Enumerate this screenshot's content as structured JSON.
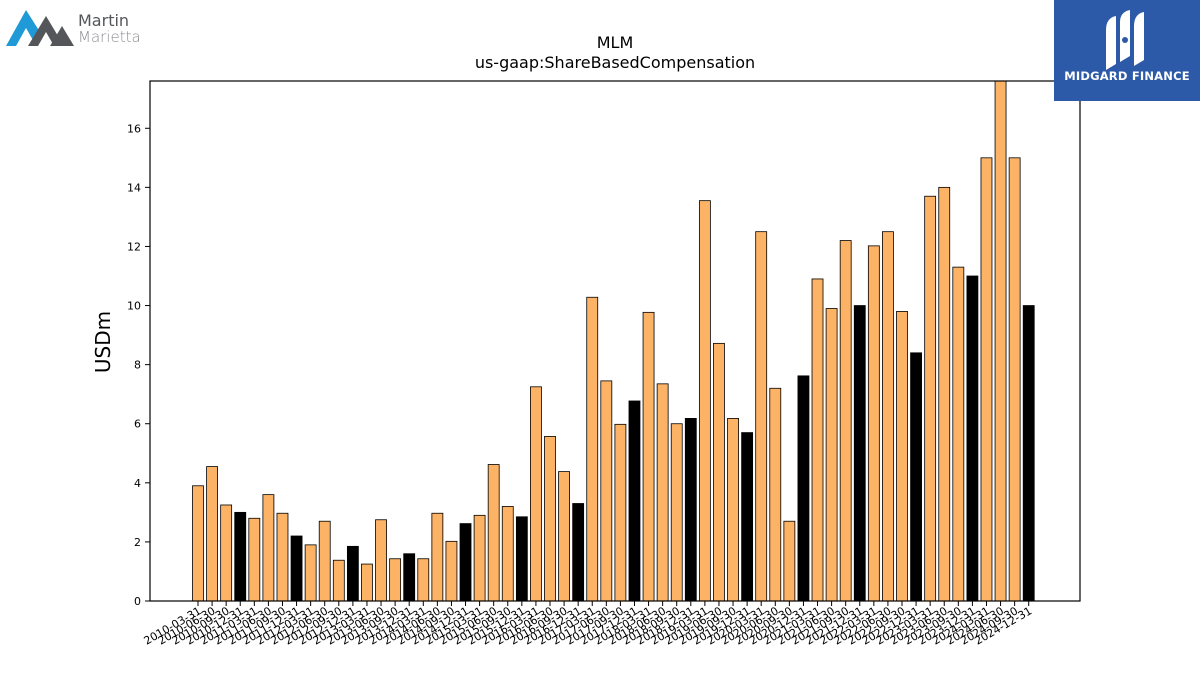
{
  "logos": {
    "left_line1": "Martin",
    "left_line2": "Marietta",
    "left_mark_color": "#1f9ad6",
    "right_text": "MIDGARD FINANCE",
    "right_bg": "#2d5aa8"
  },
  "chart_data": {
    "type": "bar",
    "title": "MLM",
    "subtitle": "us-gaap:ShareBasedCompensation",
    "xlabel": "",
    "ylabel": "USDm",
    "ylim": [
      0,
      17.6
    ],
    "yticks": [
      0,
      2,
      4,
      6,
      8,
      10,
      12,
      14,
      16
    ],
    "grid": false,
    "colors": {
      "quarter": "#fdb366",
      "annual": "#000000",
      "edge": "#000000"
    },
    "categories": [
      "2010-03-31",
      "2010-06-30",
      "2010-09-30",
      "2010-12-31",
      "2011-03-31",
      "2011-06-30",
      "2011-09-30",
      "2011-12-31",
      "2012-03-31",
      "2012-06-30",
      "2012-09-30",
      "2012-12-31",
      "2013-03-31",
      "2013-06-30",
      "2013-09-30",
      "2013-12-31",
      "2014-03-31",
      "2014-06-30",
      "2014-09-30",
      "2014-12-31",
      "2015-03-31",
      "2015-06-30",
      "2015-09-30",
      "2015-12-31",
      "2016-03-31",
      "2016-06-30",
      "2016-09-30",
      "2016-12-31",
      "2017-03-31",
      "2017-06-30",
      "2017-09-30",
      "2017-12-31",
      "2018-03-31",
      "2018-06-30",
      "2018-09-30",
      "2018-12-31",
      "2019-03-31",
      "2019-06-30",
      "2019-09-30",
      "2019-12-31",
      "2020-03-31",
      "2020-06-30",
      "2020-09-30",
      "2020-12-31",
      "2021-03-31",
      "2021-06-30",
      "2021-09-30",
      "2021-12-31",
      "2022-03-31",
      "2022-06-30",
      "2022-09-30",
      "2022-12-31",
      "2023-03-31",
      "2023-06-30",
      "2023-09-30",
      "2023-12-31",
      "2024-03-31",
      "2024-06-30",
      "2024-09-30",
      "2024-12-31"
    ],
    "values": [
      3.9,
      4.55,
      3.25,
      3.0,
      2.8,
      3.6,
      2.97,
      2.2,
      1.9,
      2.7,
      1.38,
      1.85,
      1.25,
      2.75,
      1.43,
      1.6,
      1.43,
      2.97,
      2.02,
      2.62,
      2.9,
      4.62,
      3.2,
      2.85,
      7.25,
      5.57,
      4.38,
      3.3,
      10.28,
      7.45,
      5.98,
      6.77,
      9.77,
      7.35,
      6.0,
      6.18,
      13.55,
      8.72,
      6.18,
      5.7,
      12.5,
      7.2,
      2.7,
      7.62,
      10.9,
      9.9,
      12.2,
      10.0,
      12.02,
      12.5,
      9.8,
      8.4,
      13.7,
      14.0,
      11.3,
      11.0,
      15.0,
      17.8,
      15.0,
      10.0
    ],
    "annual_flags": [
      0,
      0,
      0,
      1,
      0,
      0,
      0,
      1,
      0,
      0,
      0,
      1,
      0,
      0,
      0,
      1,
      0,
      0,
      0,
      1,
      0,
      0,
      0,
      1,
      0,
      0,
      0,
      1,
      0,
      0,
      0,
      1,
      0,
      0,
      0,
      1,
      0,
      0,
      0,
      1,
      0,
      0,
      0,
      1,
      0,
      0,
      0,
      1,
      0,
      0,
      0,
      1,
      0,
      0,
      0,
      1,
      0,
      0,
      0,
      1
    ]
  }
}
